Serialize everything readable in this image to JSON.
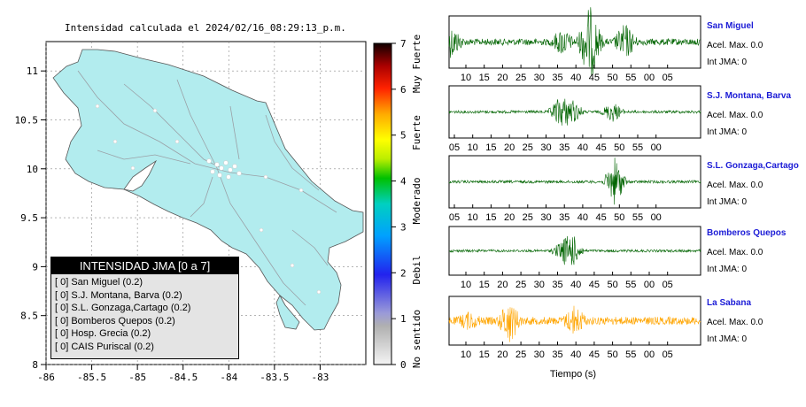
{
  "map": {
    "title": "Intensidad calculada el 2024/02/16_08:29:13_p.m.",
    "x_ticks": [
      "-86",
      "-85.5",
      "-85",
      "-84.5",
      "-84",
      "-83.5",
      "-83"
    ],
    "y_ticks": [
      "11",
      "10.5",
      "10",
      "9.5",
      "9",
      "8.5",
      "8"
    ],
    "xlim": [
      -86,
      -82.5
    ],
    "ylim": [
      8,
      11.3
    ],
    "land_color": "#b2ecee"
  },
  "legend": {
    "title": "INTENSIDAD JMA [0 a 7]",
    "items": [
      "[ 0]  San Miguel (0.2)",
      "[ 0]  S.J. Montana, Barva (0.2)",
      "[ 0]  S.L. Gonzaga,Cartago (0.2)",
      "[ 0]  Bomberos Quepos (0.2)",
      "[ 0]  Hosp. Grecia (0.2)",
      "[ 0]  CAIS Puriscal (0.2)"
    ]
  },
  "colorbar": {
    "ticks": [
      "0",
      "1",
      "2",
      "3",
      "4",
      "5",
      "6",
      "7"
    ],
    "labels": [
      "No sentido",
      "Debil",
      "Moderado",
      "Fuerte",
      "Muy Fuerte"
    ]
  },
  "waveform_axis": {
    "time_ticks_a": [
      "10",
      "15",
      "20",
      "25",
      "30",
      "35",
      "40",
      "45",
      "50",
      "55",
      "00",
      "05"
    ],
    "time_ticks_b": [
      "05",
      "10",
      "15",
      "20",
      "25",
      "30",
      "35",
      "40",
      "45",
      "50",
      "55",
      "00"
    ],
    "xlabel": "Tiempo (s)"
  },
  "stations": [
    {
      "name": "San Miguel",
      "accel": "Acel. Max. 0.0",
      "intensity": "Int JMA: 0",
      "color": "#006400"
    },
    {
      "name": "S.J. Montana, Barva",
      "accel": "Acel. Max. 0.0",
      "intensity": "Int JMA: 0",
      "color": "#006400"
    },
    {
      "name": "S.L. Gonzaga,Cartago",
      "accel": "Acel. Max. 0.0",
      "intensity": "Int JMA: 0",
      "color": "#006400"
    },
    {
      "name": "Bomberos Quepos",
      "accel": "Acel. Max. 0.0",
      "intensity": "Int JMA: 0",
      "color": "#006400"
    },
    {
      "name": "La Sabana",
      "accel": "Acel. Max. 0.0",
      "intensity": "Int JMA: 0",
      "color": "#ffa500"
    }
  ],
  "chart_data": {
    "type": "heatmap",
    "title": "Intensidad calculada el 2024/02/16_08:29:13_p.m.",
    "xlim": [
      -86,
      -82.5
    ],
    "ylim": [
      8,
      11.3
    ],
    "colorbar_range": [
      0,
      7
    ],
    "legend_placement": "bottom-left",
    "stations": [
      {
        "name": "San Miguel",
        "jma": 0,
        "value": 0.2
      },
      {
        "name": "S.J. Montana, Barva",
        "jma": 0,
        "value": 0.2
      },
      {
        "name": "S.L. Gonzaga,Cartago",
        "jma": 0,
        "value": 0.2
      },
      {
        "name": "Bomberos Quepos",
        "jma": 0,
        "value": 0.2
      },
      {
        "name": "Hosp. Grecia",
        "jma": 0,
        "value": 0.2
      },
      {
        "name": "CAIS Puriscal",
        "jma": 0,
        "value": 0.2
      }
    ]
  }
}
